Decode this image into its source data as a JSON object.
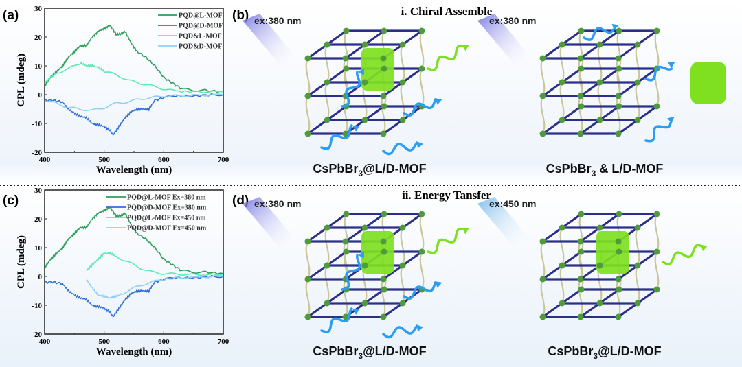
{
  "panels": {
    "a": "(a)",
    "b": "(b)",
    "c": "(c)",
    "d": "(d)",
    "row1_title": "i. Chiral Assemble",
    "row2_title": "ii. Energy Tansfer",
    "excitation": [
      "ex:380 nm",
      "ex:380 nm",
      "ex:380 nm",
      "ex:450 nm"
    ],
    "captions": [
      {
        "main": "CsPbBr",
        "sub": "3",
        "rest": "@L/D-MOF"
      },
      {
        "main": "CsPbBr",
        "sub": "3",
        "rest": " & L/D-MOF"
      },
      {
        "main": "CsPbBr",
        "sub": "3",
        "rest": "@L/D-MOF"
      },
      {
        "main": "CsPbBr",
        "sub": "3",
        "rest": "@L/D-MOF"
      }
    ]
  },
  "colors": {
    "lattice_rod": "#2b2f8a",
    "helix": "#c9c79a",
    "node": "#4f9a3a",
    "quantum_dot": "#7ee01f",
    "wave_blue": "#2a9df4",
    "wave_green": "#7ee01f"
  },
  "chart_data": [
    {
      "type": "line",
      "panel": "(a)",
      "xlabel": "Wavelength (nm)",
      "ylabel": "CPL (mdeg)",
      "xlim": [
        400,
        700
      ],
      "ylim": [
        -20,
        30
      ],
      "xticks": [
        400,
        500,
        600,
        700
      ],
      "yticks": [
        -20,
        -10,
        0,
        10,
        20,
        30
      ],
      "legend": "top-right",
      "series": [
        {
          "name": "PQD@L-MOF",
          "color": "#2e9e5b",
          "x": [
            400,
            410,
            420,
            430,
            440,
            450,
            460,
            470,
            480,
            490,
            500,
            510,
            520,
            527,
            535,
            545,
            555,
            570,
            585,
            600,
            615,
            630,
            650,
            670,
            700
          ],
          "y": [
            3,
            6,
            8,
            10,
            13,
            15,
            17,
            17,
            20,
            22,
            23,
            24,
            21,
            21,
            22,
            18,
            15,
            13,
            10,
            6,
            4,
            2,
            1.5,
            1.5,
            1
          ]
        },
        {
          "name": "PQD@D-MOF",
          "color": "#2f6fd8",
          "x": [
            400,
            415,
            430,
            440,
            450,
            460,
            470,
            480,
            490,
            500,
            510,
            515,
            525,
            535,
            545,
            555,
            565,
            575,
            585,
            600,
            620,
            650,
            680,
            700
          ],
          "y": [
            -2,
            -2,
            -2.5,
            -5,
            -6.5,
            -7.5,
            -8,
            -10,
            -10.5,
            -11,
            -12.5,
            -14,
            -11,
            -8,
            -6,
            -5,
            -5,
            -5,
            -2,
            -1,
            -0.5,
            -0.5,
            0,
            0
          ]
        },
        {
          "name": "PQD&L-MOF",
          "color": "#5fe8b5",
          "x": [
            400,
            410,
            420,
            440,
            460,
            470,
            480,
            490,
            500,
            520,
            540,
            560,
            580,
            600,
            620,
            650,
            700
          ],
          "y": [
            4,
            6,
            7.5,
            9,
            11,
            10,
            10,
            9.5,
            8,
            7,
            5,
            4,
            3,
            2,
            1.2,
            1,
            1
          ]
        },
        {
          "name": "PQD&D-MOF",
          "color": "#8fd0f5",
          "x": [
            400,
            420,
            440,
            460,
            480,
            500,
            520,
            540,
            560,
            580,
            600,
            640,
            700
          ],
          "y": [
            -2,
            -3,
            -4.5,
            -5,
            -5.5,
            -4.5,
            -3,
            -2.5,
            -1.5,
            -1,
            -0.5,
            -0.3,
            0
          ]
        }
      ]
    },
    {
      "type": "line",
      "panel": "(c)",
      "xlabel": "Wavelength (nm)",
      "ylabel": "CPL (mdeg)",
      "xlim": [
        400,
        700
      ],
      "ylim": [
        -20,
        30
      ],
      "xticks": [
        400,
        500,
        600,
        700
      ],
      "yticks": [
        -20,
        -10,
        0,
        10,
        20,
        30
      ],
      "legend": "top-right",
      "series": [
        {
          "name": "PQD@L-MOF Ex=380 nm",
          "color": "#2e9e5b",
          "x": [
            400,
            410,
            420,
            430,
            440,
            450,
            460,
            470,
            480,
            490,
            500,
            510,
            520,
            527,
            535,
            545,
            555,
            570,
            585,
            600,
            615,
            630,
            650,
            670,
            700
          ],
          "y": [
            3,
            6,
            8,
            10,
            13,
            15,
            17,
            17,
            20,
            22,
            23,
            24,
            21,
            21,
            22,
            18,
            15,
            13,
            10,
            6,
            4,
            2,
            1.5,
            1.5,
            1
          ]
        },
        {
          "name": "PQD@D-MOF Ex=380 nm",
          "color": "#2f6fd8",
          "x": [
            400,
            415,
            430,
            440,
            450,
            460,
            470,
            480,
            490,
            500,
            510,
            515,
            525,
            535,
            545,
            555,
            565,
            575,
            585,
            600,
            620,
            650,
            680,
            700
          ],
          "y": [
            -2,
            -2,
            -2.5,
            -5,
            -6.5,
            -7.5,
            -8,
            -10,
            -10.5,
            -11,
            -12.5,
            -14,
            -11,
            -8,
            -6,
            -5,
            -5,
            -5,
            -2,
            -1,
            -0.5,
            -0.5,
            0,
            0
          ]
        },
        {
          "name": "PQD@L-MOF Ex=450 nm",
          "color": "#5fe8b5",
          "x": [
            470,
            480,
            490,
            500,
            510,
            520,
            540,
            560,
            580,
            600,
            640,
            700
          ],
          "y": [
            2,
            4,
            6,
            8,
            8,
            7,
            5,
            3,
            1.5,
            1,
            0.7,
            0.5
          ]
        },
        {
          "name": "PQD@D-MOF Ex=450 nm",
          "color": "#8fd0f5",
          "x": [
            470,
            480,
            490,
            500,
            510,
            520,
            530,
            550,
            570,
            590,
            620,
            700
          ],
          "y": [
            -1,
            -4,
            -6.5,
            -7,
            -7.5,
            -7,
            -6,
            -4,
            -2.5,
            -1.5,
            -0.5,
            0
          ]
        }
      ]
    }
  ]
}
